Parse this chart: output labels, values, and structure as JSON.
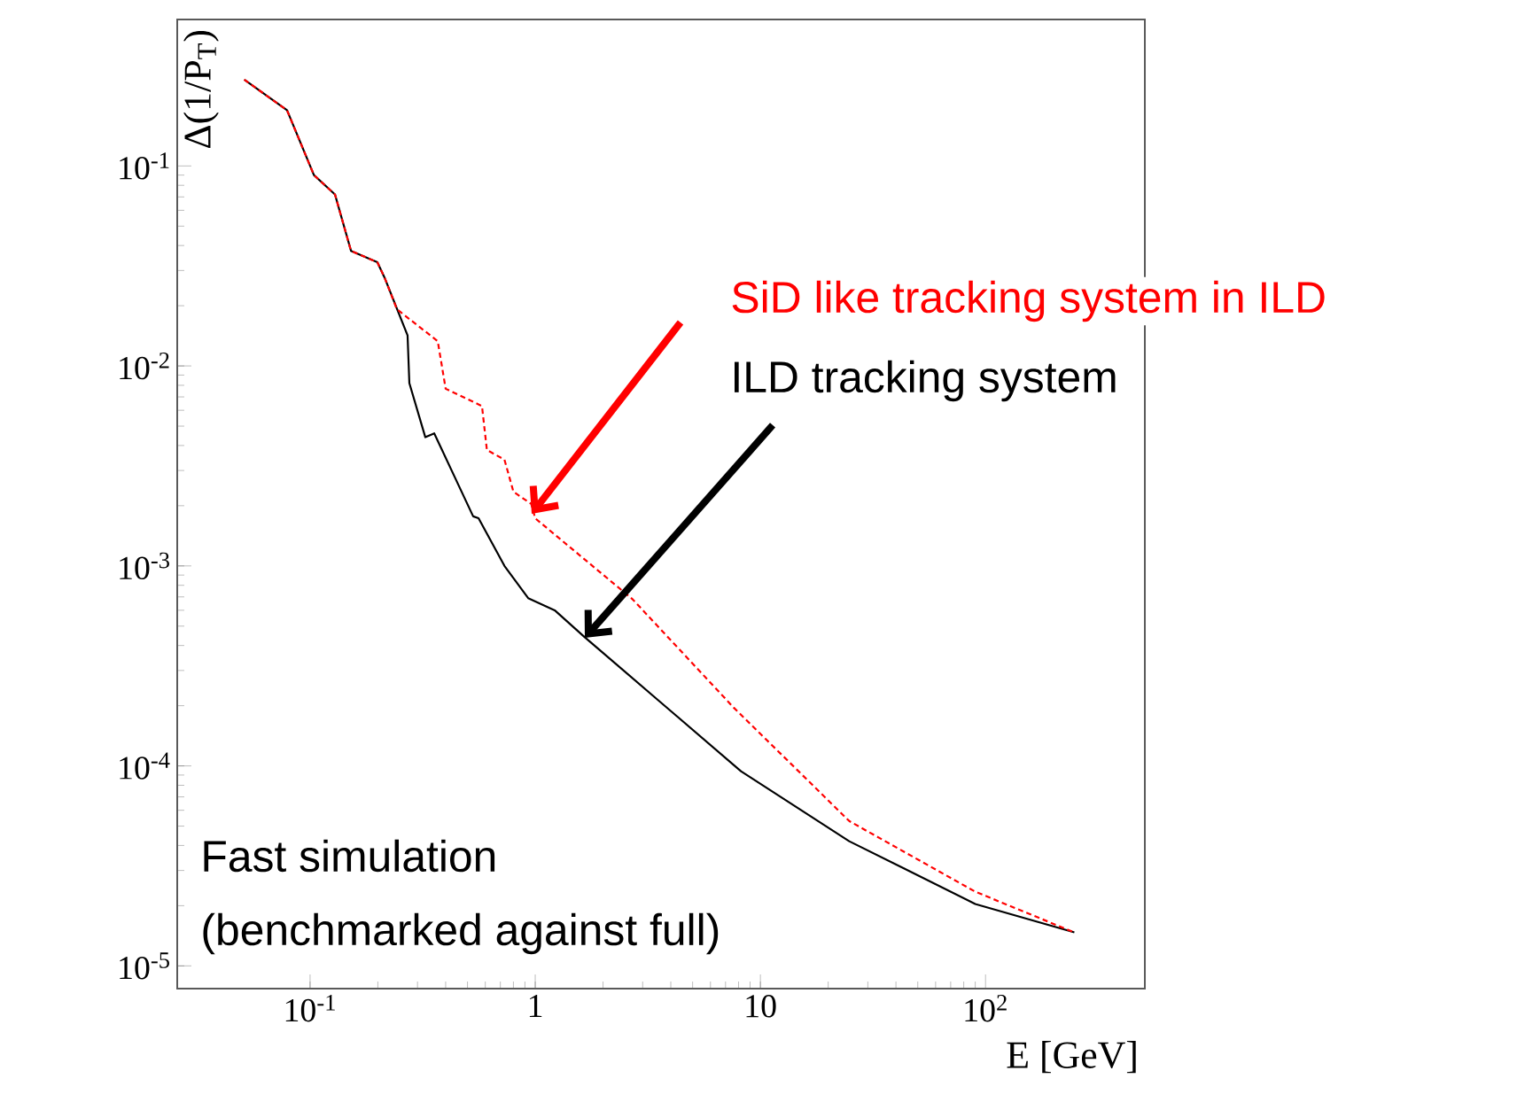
{
  "chart_data": {
    "type": "line",
    "xlabel": "E [GeV]",
    "ylabel": "Δ(1/P$_{T}$)",
    "log": "xy",
    "grid": false,
    "legend": false,
    "marker": "none",
    "xlim": [
      0.0257,
      510
    ],
    "ylim": [
      7.7e-06,
      0.54
    ],
    "xticks": [
      {
        "value": 0.1,
        "label": "10$^{-1}$"
      },
      1,
      10,
      {
        "value": 100,
        "label": "10$^{2}$"
      }
    ],
    "yticks": [
      {
        "value": 1e-05,
        "label": "10$^{-5}$"
      },
      {
        "value": 0.0001,
        "label": "10$^{-4}$"
      },
      {
        "value": 0.001,
        "label": "10$^{-3}$"
      },
      {
        "value": 0.01,
        "label": "10$^{-2}$"
      },
      {
        "value": 0.1,
        "label": "10$^{-1}$"
      }
    ],
    "series": [
      {
        "name": "SiD like tracking system in ILD",
        "color": "#ff0000",
        "line_style": "dashed",
        "x": [
          0.051,
          0.079,
          0.104,
          0.129,
          0.152,
          0.199,
          0.214,
          0.243,
          0.369,
          0.4,
          0.58,
          0.61,
          0.73,
          0.8,
          0.96,
          1.0,
          2.71,
          7.6,
          24.8,
          90,
          248
        ],
        "values": [
          0.27,
          0.19,
          0.09,
          0.072,
          0.0376,
          0.033,
          0.0277,
          0.0192,
          0.0133,
          0.0077,
          0.0063,
          0.0038,
          0.0034,
          0.00235,
          0.00204,
          0.00173,
          0.00068,
          0.000196,
          5.3e-05,
          2.35e-05,
          1.47e-05
        ]
      },
      {
        "name": "ILD tracking system",
        "color": "#000000",
        "line_style": "solid",
        "x": [
          0.051,
          0.079,
          0.104,
          0.129,
          0.152,
          0.199,
          0.214,
          0.271,
          0.276,
          0.325,
          0.356,
          0.53,
          0.56,
          0.73,
          0.93,
          1.22,
          1.66,
          3.5,
          8.2,
          24.8,
          90,
          248
        ],
        "values": [
          0.27,
          0.19,
          0.09,
          0.072,
          0.0376,
          0.033,
          0.0277,
          0.0142,
          0.0082,
          0.0044,
          0.0046,
          0.00177,
          0.00173,
          0.001,
          0.00069,
          0.0006,
          0.00044,
          0.000214,
          9.4e-05,
          4.2e-05,
          2.04e-05,
          1.47e-05
        ]
      }
    ],
    "annotations": [
      "Fast simulation",
      "(benchmarked against full)"
    ]
  }
}
